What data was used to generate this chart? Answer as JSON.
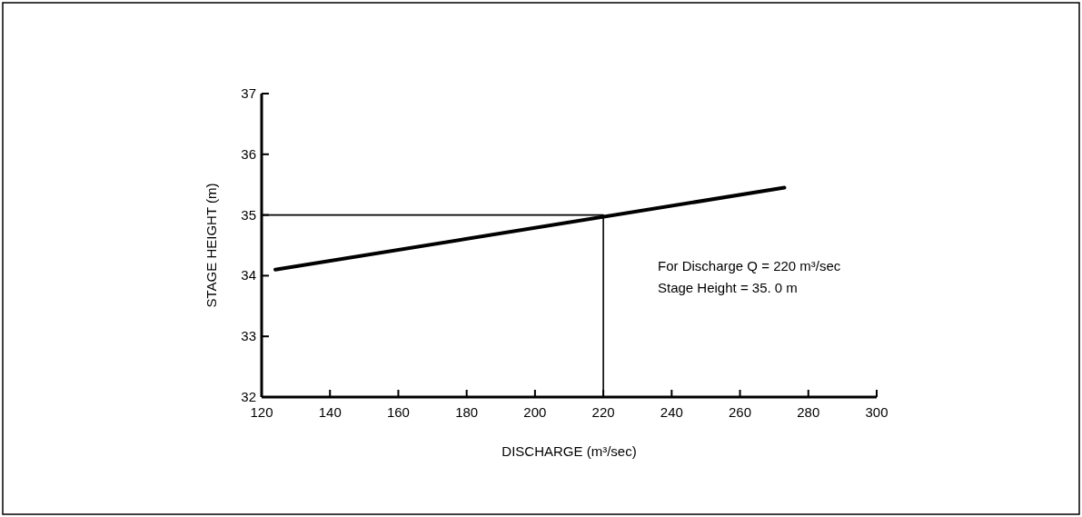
{
  "chart_data": {
    "type": "line",
    "xlabel": "DISCHARGE (m³/sec)",
    "ylabel": "STAGE HEIGHT (m)",
    "xlim": [
      120,
      300
    ],
    "xticks": [
      120,
      140,
      160,
      180,
      200,
      220,
      240,
      260,
      280,
      300
    ],
    "ylim": [
      32,
      37
    ],
    "yticks": [
      32,
      33,
      34,
      35,
      36,
      37
    ],
    "series": [
      {
        "color": "#000000",
        "x": [
          124,
          273
        ],
        "values": [
          34.1,
          35.45
        ]
      },
      {
        "color": "#000000",
        "x": [
          120,
          220,
          220
        ],
        "values": [
          35,
          35,
          32
        ]
      }
    ],
    "annotations": [
      "For Discharge Q = 220 m³/sec",
      "Stage Height = 35. 0 m"
    ],
    "marker": "none",
    "line_style": "solid"
  }
}
